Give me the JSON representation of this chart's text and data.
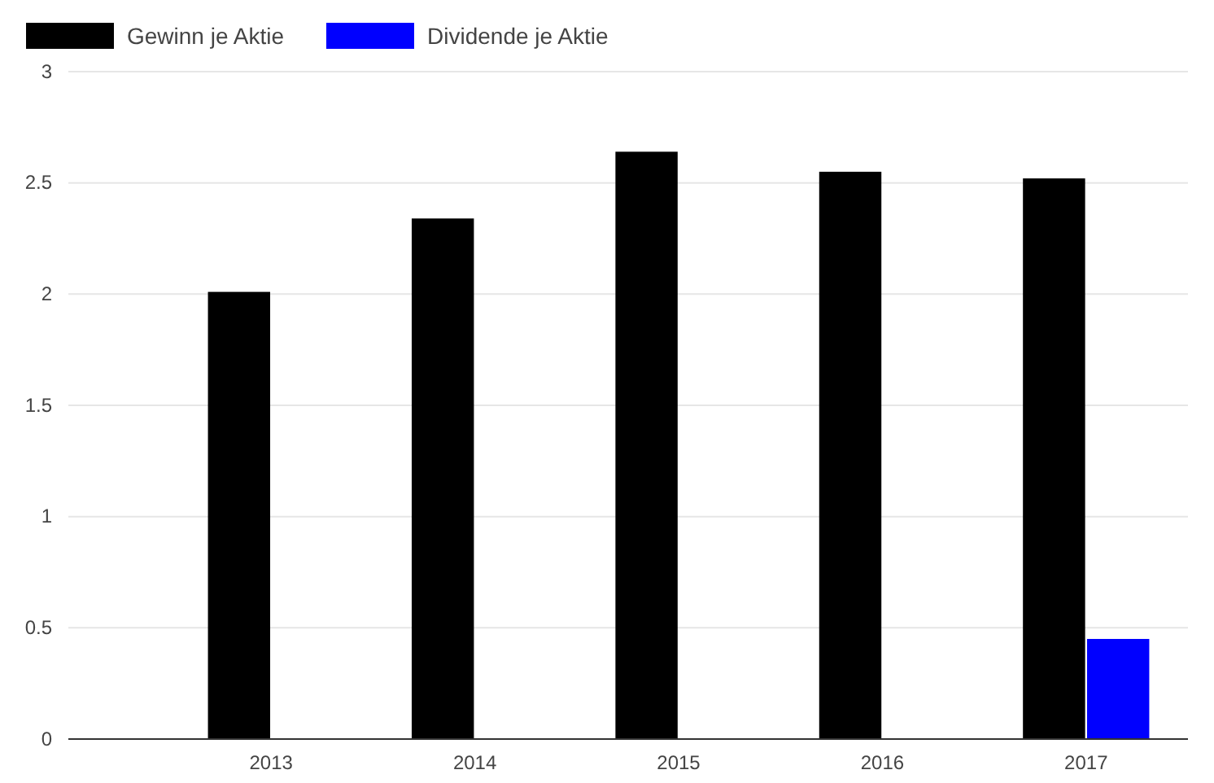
{
  "chart_data": {
    "type": "bar",
    "categories": [
      "2013",
      "2014",
      "2015",
      "2016",
      "2017"
    ],
    "series": [
      {
        "name": "Gewinn je Aktie",
        "color": "#000000",
        "values": [
          2.01,
          2.34,
          2.64,
          2.55,
          2.52
        ]
      },
      {
        "name": "Dividende je Aktie",
        "color": "#0000ff",
        "values": [
          null,
          null,
          null,
          null,
          0.45
        ]
      }
    ],
    "ylim": [
      0,
      3
    ],
    "yticks": [
      0,
      0.5,
      1,
      1.5,
      2,
      2.5,
      3
    ],
    "grid": "y",
    "legend": "top left"
  }
}
